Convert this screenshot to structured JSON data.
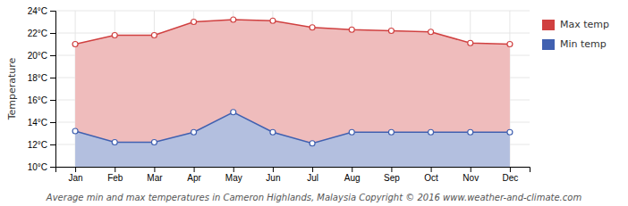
{
  "chart_data": {
    "type": "line",
    "title": "Average min and max temperatures in Cameron Highlands, Malaysia   Copyright © 2016 www.weather-and-climate.com",
    "ylabel": "Temperature",
    "categories": [
      "Jan",
      "Feb",
      "Mar",
      "Apr",
      "May",
      "Jun",
      "Jul",
      "Aug",
      "Sep",
      "Oct",
      "Nov",
      "Dec"
    ],
    "series": [
      {
        "name": "Max temp",
        "color": "#d04040",
        "marker": "circle",
        "values": [
          21.0,
          21.8,
          21.8,
          23.0,
          23.2,
          23.1,
          22.5,
          22.3,
          22.2,
          22.1,
          21.1,
          21.0
        ]
      },
      {
        "name": "Min temp",
        "color": "#4060b0",
        "marker": "circle",
        "values": [
          13.2,
          12.2,
          12.2,
          13.1,
          14.9,
          13.1,
          12.1,
          13.1,
          13.1,
          13.1,
          13.1,
          13.1
        ]
      }
    ],
    "ylim": [
      10,
      24
    ],
    "yticks": [
      {
        "value": 10,
        "label": "10°C"
      },
      {
        "value": 12,
        "label": "12°C"
      },
      {
        "value": 14,
        "label": "14°C"
      },
      {
        "value": 16,
        "label": "16°C"
      },
      {
        "value": 18,
        "label": "18°C"
      },
      {
        "value": 20,
        "label": "20°C"
      },
      {
        "value": 22,
        "label": "22°C"
      },
      {
        "value": 24,
        "label": "24°C"
      }
    ],
    "grid": true,
    "legend": "right"
  }
}
